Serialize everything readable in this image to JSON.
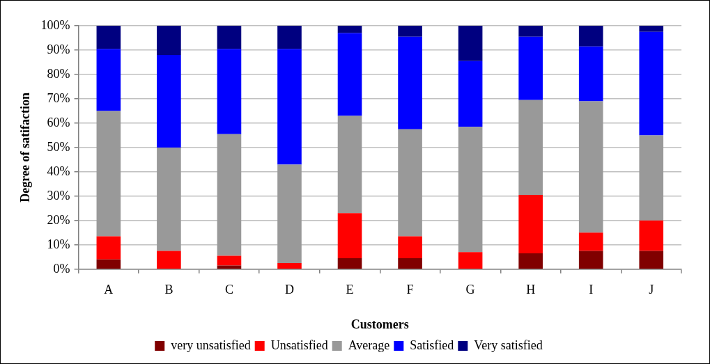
{
  "chart_data": {
    "type": "bar",
    "stacked": true,
    "xlabel": "Customers",
    "ylabel": "Degree of satifaction",
    "categories": [
      "A",
      "B",
      "C",
      "D",
      "E",
      "F",
      "G",
      "H",
      "I",
      "J"
    ],
    "series": [
      {
        "name": "very unsatisfied",
        "color": "#800000",
        "values": [
          4,
          0,
          1.5,
          0,
          4.5,
          4.5,
          0,
          6.5,
          7.5,
          7.5
        ]
      },
      {
        "name": "Unsatisfied",
        "color": "#ff0000",
        "values": [
          9.5,
          7.5,
          4,
          2.5,
          18.5,
          9,
          7,
          24,
          7.5,
          12.5
        ]
      },
      {
        "name": "Average",
        "color": "#999999",
        "values": [
          51.5,
          42.5,
          50,
          40.5,
          40,
          44,
          51.5,
          39,
          54,
          35
        ]
      },
      {
        "name": "Satisfied",
        "color": "#0000ff",
        "values": [
          25.5,
          38,
          35,
          47.5,
          34,
          38,
          27,
          26,
          22.5,
          42.5
        ]
      },
      {
        "name": "Very satisfied",
        "color": "#000080",
        "values": [
          9.5,
          12,
          9.5,
          9.5,
          3,
          4.5,
          14.5,
          4.5,
          8.5,
          2.5
        ]
      }
    ],
    "ylim": [
      0,
      100
    ],
    "yticks": [
      {
        "value": 0,
        "label": "0%"
      },
      {
        "value": 10,
        "label": "10%"
      },
      {
        "value": 20,
        "label": "20%"
      },
      {
        "value": 30,
        "label": "30%"
      },
      {
        "value": 40,
        "label": "40%"
      },
      {
        "value": 50,
        "label": "50%"
      },
      {
        "value": 60,
        "label": "60%"
      },
      {
        "value": 70,
        "label": "70%"
      },
      {
        "value": 80,
        "label": "80%"
      },
      {
        "value": 90,
        "label": "90%"
      },
      {
        "value": 100,
        "label": "100%"
      }
    ],
    "grid": "y",
    "legend": "bottom"
  }
}
